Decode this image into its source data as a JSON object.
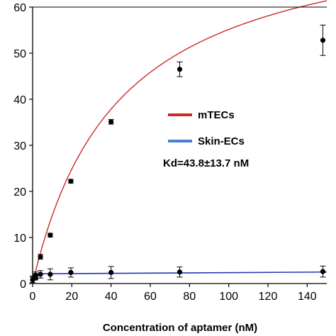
{
  "chart_data": {
    "type": "scatter",
    "title": "",
    "xlabel": "Concentration of aptamer (nM)",
    "ylabel": "",
    "xlim": [
      0,
      150
    ],
    "ylim": [
      0,
      60
    ],
    "x_ticks": [
      0,
      20,
      40,
      60,
      80,
      100,
      120,
      140
    ],
    "y_ticks": [
      0,
      10,
      20,
      30,
      40,
      50,
      60
    ],
    "grid": false,
    "legend_position": "center",
    "series": [
      {
        "name": "mTECs",
        "color": "#cc2a22",
        "x": [
          0,
          1.5,
          4,
          9,
          19.5,
          40,
          75,
          148
        ],
        "y": [
          0.8,
          1.2,
          5.8,
          10.5,
          22.2,
          35.1,
          46.5,
          52.8
        ],
        "err": [
          0.8,
          0.4,
          0.5,
          0.4,
          0.4,
          0.5,
          1.6,
          3.3
        ],
        "fit_bmax": 79.3,
        "fit_kd": 43.8
      },
      {
        "name": "Skin-ECs",
        "color": "#2233bb",
        "x": [
          0,
          1.5,
          4,
          9,
          19.5,
          40,
          75,
          148
        ],
        "y": [
          0.8,
          1.8,
          2.0,
          2.0,
          2.4,
          2.4,
          2.5,
          2.6
        ],
        "err": [
          0.6,
          0.7,
          0.8,
          1.2,
          1.0,
          1.3,
          1.1,
          1.2
        ],
        "fit_y0": 2.1,
        "fit_y1": 2.5
      }
    ],
    "annotation": "Kd=43.8±13.7 nM"
  }
}
